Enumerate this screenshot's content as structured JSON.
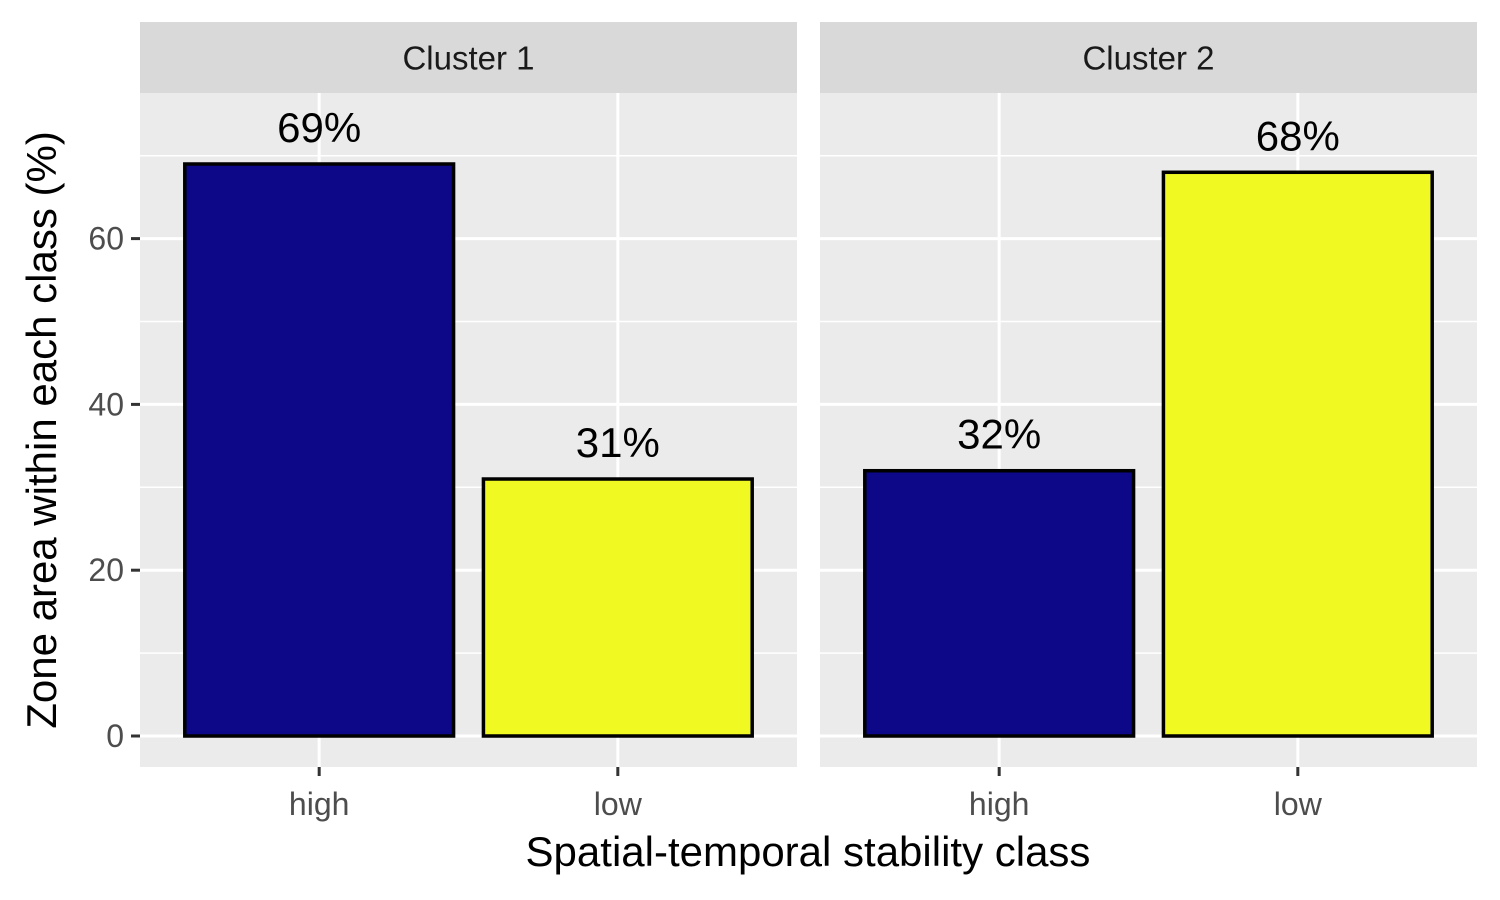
{
  "chart_data": {
    "type": "bar",
    "xlabel": "Spatial-temporal stability class",
    "ylabel": "Zone area within each class (%)",
    "categories": [
      "high",
      "low"
    ],
    "ylim": [
      0,
      80
    ],
    "yticks": [
      0,
      20,
      40,
      60
    ],
    "grid": true,
    "facets": [
      {
        "label": "Cluster 1",
        "values": [
          69,
          31
        ],
        "labels": [
          "69%",
          "31%"
        ],
        "colors": [
          "#0d0887",
          "#f0f921"
        ]
      },
      {
        "label": "Cluster 2",
        "values": [
          32,
          68
        ],
        "labels": [
          "32%",
          "68%"
        ],
        "colors": [
          "#0d0887",
          "#f0f921"
        ]
      }
    ]
  }
}
